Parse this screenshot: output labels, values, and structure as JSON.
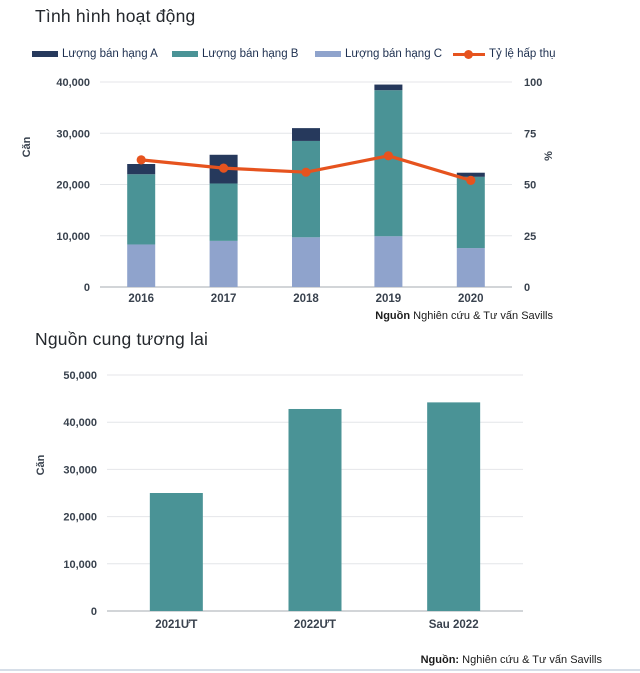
{
  "chart_data": [
    {
      "type": "bar",
      "subtype": "stacked-bar-with-line",
      "title": "Tình hình hoạt động",
      "categories": [
        "2016",
        "2017",
        "2018",
        "2019",
        "2020"
      ],
      "series": [
        {
          "name": "Lượng bán hạng A",
          "color": "#26395C",
          "values": [
            2000,
            5600,
            2500,
            1100,
            800
          ]
        },
        {
          "name": "Lượng bán hạng B",
          "color": "#4A9396",
          "values": [
            13700,
            11200,
            18800,
            28500,
            13900
          ]
        },
        {
          "name": "Lượng bán hạng C",
          "color": "#8FA3CC",
          "values": [
            8300,
            9000,
            9700,
            9900,
            7600
          ]
        }
      ],
      "line_series": {
        "name": "Tỷ lệ hấp thụ",
        "color": "#E6531E",
        "axis": "right",
        "values": [
          62,
          58,
          56,
          64,
          52
        ]
      },
      "y_axis": {
        "label": "Căn",
        "min": 0,
        "max": 40000,
        "ticks": [
          "0",
          "10,000",
          "20,000",
          "30,000",
          "40,000"
        ]
      },
      "y2_axis": {
        "label": "%",
        "min": 0,
        "max": 100,
        "ticks": [
          "0",
          "25",
          "50",
          "75",
          "100"
        ]
      },
      "legend_position": "top",
      "grid": true,
      "legend": [
        {
          "label": "Lượng bán hạng A",
          "color": "#26395C",
          "type": "bar"
        },
        {
          "label": "Lượng bán hạng B",
          "color": "#4A9396",
          "type": "bar"
        },
        {
          "label": "Lượng bán hạng C",
          "color": "#8FA3CC",
          "type": "bar"
        },
        {
          "label": "Tỷ lệ hấp thụ",
          "color": "#E6531E",
          "type": "line"
        }
      ],
      "source": {
        "bold": "Nguồn",
        "rest": " Nghiên cứu & Tư vấn Savills"
      }
    },
    {
      "type": "bar",
      "title": "Nguồn cung tương lai",
      "categories": [
        "2021ƯT",
        "2022ƯT",
        "Sau 2022"
      ],
      "series": [
        {
          "name": "Nguồn cung tương lai",
          "color": "#4A9396",
          "values": [
            25000,
            42800,
            44200
          ]
        }
      ],
      "y_axis": {
        "label": "Căn",
        "min": 0,
        "max": 50000,
        "ticks": [
          "0",
          "10,000",
          "20,000",
          "30,000",
          "40,000",
          "50,000"
        ]
      },
      "grid": true,
      "source": {
        "bold": "Nguồn:",
        "rest": " Nghiên cứu & Tư vấn Savills"
      }
    }
  ],
  "colors": {
    "hang_a": "#26395C",
    "hang_b": "#4A9396",
    "hang_c": "#8FA3CC",
    "absorption_line": "#E6531E",
    "gridline": "#E4E6E9",
    "zero_line": "#C3C7CC",
    "text": "#39424E"
  }
}
